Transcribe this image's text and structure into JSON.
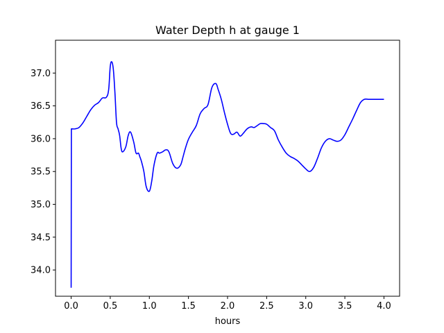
{
  "chart_data": {
    "type": "line",
    "title": "Water Depth h at gauge 1",
    "xlabel": "hours",
    "ylabel": "",
    "xlim": [
      -0.2,
      4.2
    ],
    "ylim": [
      33.6,
      37.5
    ],
    "xticks": [
      0.0,
      0.5,
      1.0,
      1.5,
      2.0,
      2.5,
      3.0,
      3.5,
      4.0
    ],
    "xtick_labels": [
      "0.0",
      "0.5",
      "1.0",
      "1.5",
      "2.0",
      "2.5",
      "3.0",
      "3.5",
      "4.0"
    ],
    "yticks": [
      34.0,
      34.5,
      35.0,
      35.5,
      36.0,
      36.5,
      37.0
    ],
    "ytick_labels": [
      "34.0",
      "34.5",
      "35.0",
      "35.5",
      "36.0",
      "36.5",
      "37.0"
    ],
    "grid": false,
    "series": [
      {
        "color": "#0000ff",
        "x": [
          0.0,
          0.003,
          0.006,
          0.05,
          0.1,
          0.15,
          0.2,
          0.25,
          0.3,
          0.35,
          0.4,
          0.45,
          0.48,
          0.5,
          0.52,
          0.54,
          0.56,
          0.58,
          0.6,
          0.62,
          0.64,
          0.66,
          0.7,
          0.73,
          0.76,
          0.8,
          0.83,
          0.86,
          0.88,
          0.9,
          0.93,
          0.96,
          1.0,
          1.03,
          1.06,
          1.1,
          1.13,
          1.17,
          1.21,
          1.25,
          1.3,
          1.35,
          1.4,
          1.43,
          1.46,
          1.5,
          1.55,
          1.6,
          1.65,
          1.7,
          1.75,
          1.8,
          1.85,
          1.88,
          1.92,
          1.96,
          2.0,
          2.04,
          2.08,
          2.12,
          2.16,
          2.2,
          2.25,
          2.3,
          2.34,
          2.38,
          2.42,
          2.46,
          2.5,
          2.55,
          2.6,
          2.65,
          2.7,
          2.75,
          2.8,
          2.85,
          2.9,
          2.95,
          3.0,
          3.05,
          3.1,
          3.15,
          3.2,
          3.25,
          3.3,
          3.35,
          3.4,
          3.45,
          3.5,
          3.55,
          3.6,
          3.65,
          3.7,
          3.75,
          3.8,
          3.85,
          3.9,
          3.95,
          4.0
        ],
        "y": [
          33.73,
          36.15,
          36.15,
          36.15,
          36.17,
          36.24,
          36.34,
          36.44,
          36.51,
          36.55,
          36.62,
          36.63,
          36.75,
          37.1,
          37.17,
          37.05,
          36.7,
          36.25,
          36.15,
          36.05,
          35.85,
          35.8,
          35.88,
          36.05,
          36.1,
          35.95,
          35.78,
          35.78,
          35.72,
          35.65,
          35.5,
          35.27,
          35.2,
          35.35,
          35.6,
          35.78,
          35.78,
          35.8,
          35.83,
          35.8,
          35.62,
          35.55,
          35.6,
          35.72,
          35.85,
          35.99,
          36.1,
          36.2,
          36.38,
          36.46,
          36.52,
          36.78,
          36.84,
          36.75,
          36.6,
          36.4,
          36.22,
          36.08,
          36.07,
          36.1,
          36.04,
          36.08,
          36.15,
          36.18,
          36.17,
          36.2,
          36.23,
          36.23,
          36.22,
          36.17,
          36.12,
          35.98,
          35.87,
          35.78,
          35.73,
          35.7,
          35.66,
          35.6,
          35.54,
          35.5,
          35.56,
          35.7,
          35.86,
          35.96,
          36.0,
          35.98,
          35.96,
          35.98,
          36.06,
          36.18,
          36.3,
          36.43,
          36.55,
          36.6,
          36.6,
          36.6,
          36.6,
          36.6,
          36.6
        ]
      }
    ]
  }
}
